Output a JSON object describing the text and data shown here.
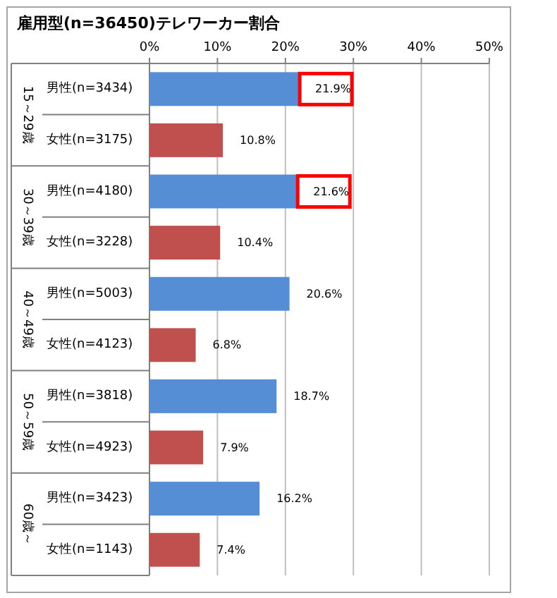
{
  "chart_data": {
    "type": "bar",
    "orientation": "horizontal",
    "title": "雇用型(n=36450)テレワーカー割合",
    "categories": [
      "男性(n=3434)",
      "女性(n=3175)",
      "男性(n=4180)",
      "女性(n=3228)",
      "男性(n=5003)",
      "女性(n=4123)",
      "男性(n=3818)",
      "女性(n=4923)",
      "男性(n=3423)",
      "女性(n=1143)"
    ],
    "values": [
      21.9,
      10.8,
      21.6,
      10.4,
      20.6,
      6.8,
      18.7,
      7.9,
      16.2,
      7.4
    ],
    "colors": [
      "#558ed5",
      "#c0504d",
      "#558ed5",
      "#c0504d",
      "#558ed5",
      "#c0504d",
      "#558ed5",
      "#c0504d",
      "#558ed5",
      "#c0504d"
    ],
    "value_labels": [
      "21.9%",
      "10.8%",
      "21.6%",
      "10.4%",
      "20.6%",
      "6.8%",
      "18.7%",
      "7.9%",
      "16.2%",
      "7.4%"
    ],
    "annotations": [
      "15～29歳",
      "30～39歳",
      "40～49歳",
      "50～59歳",
      "60歳～"
    ],
    "xlim": [
      0,
      50
    ],
    "xticks": [
      {
        "value": 0,
        "label": "0%"
      },
      {
        "value": 10,
        "label": "10%"
      },
      {
        "value": 20,
        "label": "20%"
      },
      {
        "value": 30,
        "label": "30%"
      },
      {
        "value": 40,
        "label": "40%"
      },
      {
        "value": 50,
        "label": "50%"
      }
    ],
    "grid": "x"
  }
}
